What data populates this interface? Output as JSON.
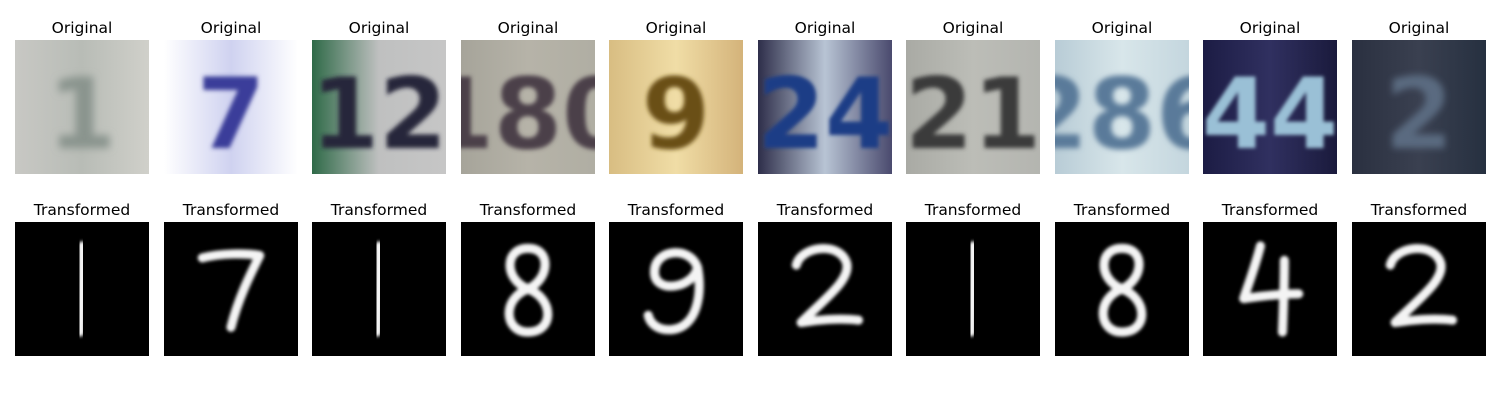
{
  "rows": [
    {
      "title": "Original"
    },
    {
      "title": "Transformed"
    }
  ],
  "samples": [
    {
      "original": {
        "text": "1",
        "bg": [
          "#c8c8c4",
          "#b8bcb6",
          "#d0d0ca"
        ],
        "fg": "#8a948e",
        "blur": 4
      },
      "transformed": "1"
    },
    {
      "original": {
        "text": "7",
        "bg": [
          "#ffffff",
          "#cfd2f0",
          "#ffffff"
        ],
        "fg": "#3a3c9a",
        "blur": 2.2
      },
      "transformed": "7"
    },
    {
      "original": {
        "text": "12",
        "bg": [
          "#2f6a48",
          "#bfc0c0",
          "#c6c6c6"
        ],
        "fg": "#26263a",
        "blur": 2.2
      },
      "transformed": "1"
    },
    {
      "original": {
        "text": "180",
        "bg": [
          "#a6a49a",
          "#b6b3a8",
          "#b0aea3"
        ],
        "fg": "#4c3f48",
        "blur": 2.2
      },
      "transformed": "8"
    },
    {
      "original": {
        "text": "9",
        "bg": [
          "#d8bd82",
          "#f0dda6",
          "#d4b37a"
        ],
        "fg": "#6a5018",
        "blur": 2.2
      },
      "transformed": "9"
    },
    {
      "original": {
        "text": "24",
        "bg": [
          "#2e2e4a",
          "#b8c4d4",
          "#4a4a6e"
        ],
        "fg": "#1c3c86",
        "blur": 1.8
      },
      "transformed": "2"
    },
    {
      "original": {
        "text": "21",
        "bg": [
          "#a9aaa4",
          "#bcbdb7",
          "#b4b5b0"
        ],
        "fg": "#3a3a3a",
        "blur": 2.0
      },
      "transformed": "1"
    },
    {
      "original": {
        "text": "286",
        "bg": [
          "#b8ccd6",
          "#d8e6ea",
          "#c4d6de"
        ],
        "fg": "#5a7a9a",
        "blur": 2.6
      },
      "transformed": "8"
    },
    {
      "original": {
        "text": "44",
        "bg": [
          "#1c1c44",
          "#303060",
          "#1a1a3c"
        ],
        "fg": "#9ac0d6",
        "blur": 1.8
      },
      "transformed": "4"
    },
    {
      "original": {
        "text": "2",
        "bg": [
          "#2a3040",
          "#3a4050",
          "#263040"
        ],
        "fg": "#5a6a80",
        "blur": 3.5
      },
      "transformed": "2"
    }
  ]
}
